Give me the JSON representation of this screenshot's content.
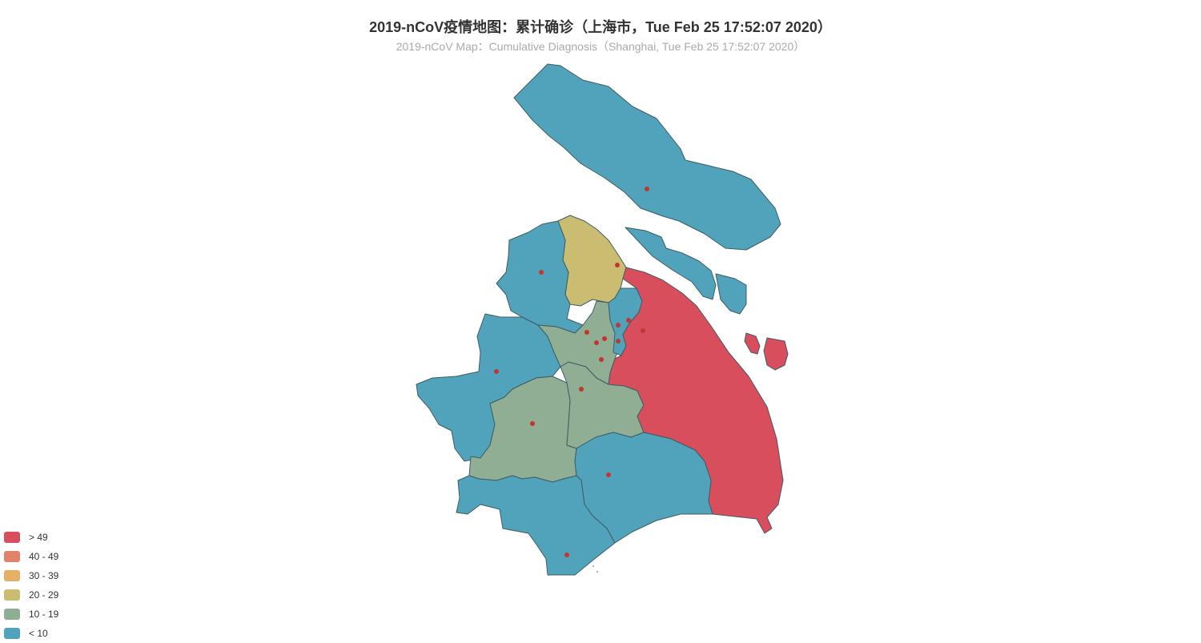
{
  "title": "2019-nCoV疫情地图：累计确诊（上海市，Tue Feb 25 17:52:07 2020）",
  "subtitle": "2019-nCoV Map：Cumulative Diagnosis（Shanghai, Tue Feb 25 17:52:07 2020）",
  "colors": {
    "gt49": "#d94e5d",
    "40_49": "#e0836a",
    "30_39": "#e3b066",
    "20_29": "#cabd71",
    "10_19": "#8fae93",
    "lt10": "#50a3ba",
    "marker": "#c23531",
    "border": "#3f5d64"
  },
  "legend": [
    {
      "label": "> 49",
      "color_key": "gt49"
    },
    {
      "label": "40 - 49",
      "color_key": "40_49"
    },
    {
      "label": "30 - 39",
      "color_key": "30_39"
    },
    {
      "label": "20 - 29",
      "color_key": "20_29"
    },
    {
      "label": "10 - 19",
      "color_key": "10_19"
    },
    {
      "label": "< 10",
      "color_key": "lt10"
    }
  ],
  "regions": [
    {
      "id": "chongming",
      "bucket": "lt10"
    },
    {
      "id": "changxing-island",
      "bucket": "lt10"
    },
    {
      "id": "hengsha-island",
      "bucket": "lt10"
    },
    {
      "id": "small-island-1",
      "bucket": "gt49"
    },
    {
      "id": "small-island-2",
      "bucket": "gt49"
    },
    {
      "id": "baoshan",
      "bucket": "20_29"
    },
    {
      "id": "jiading",
      "bucket": "lt10"
    },
    {
      "id": "qingpu",
      "bucket": "lt10"
    },
    {
      "id": "songjiang",
      "bucket": "10_19"
    },
    {
      "id": "minhang",
      "bucket": "10_19"
    },
    {
      "id": "urban-center",
      "bucket": "10_19"
    },
    {
      "id": "yangpu",
      "bucket": "lt10"
    },
    {
      "id": "pudong",
      "bucket": "gt49"
    },
    {
      "id": "fengxian",
      "bucket": "lt10"
    },
    {
      "id": "jinshan",
      "bucket": "lt10"
    }
  ]
}
